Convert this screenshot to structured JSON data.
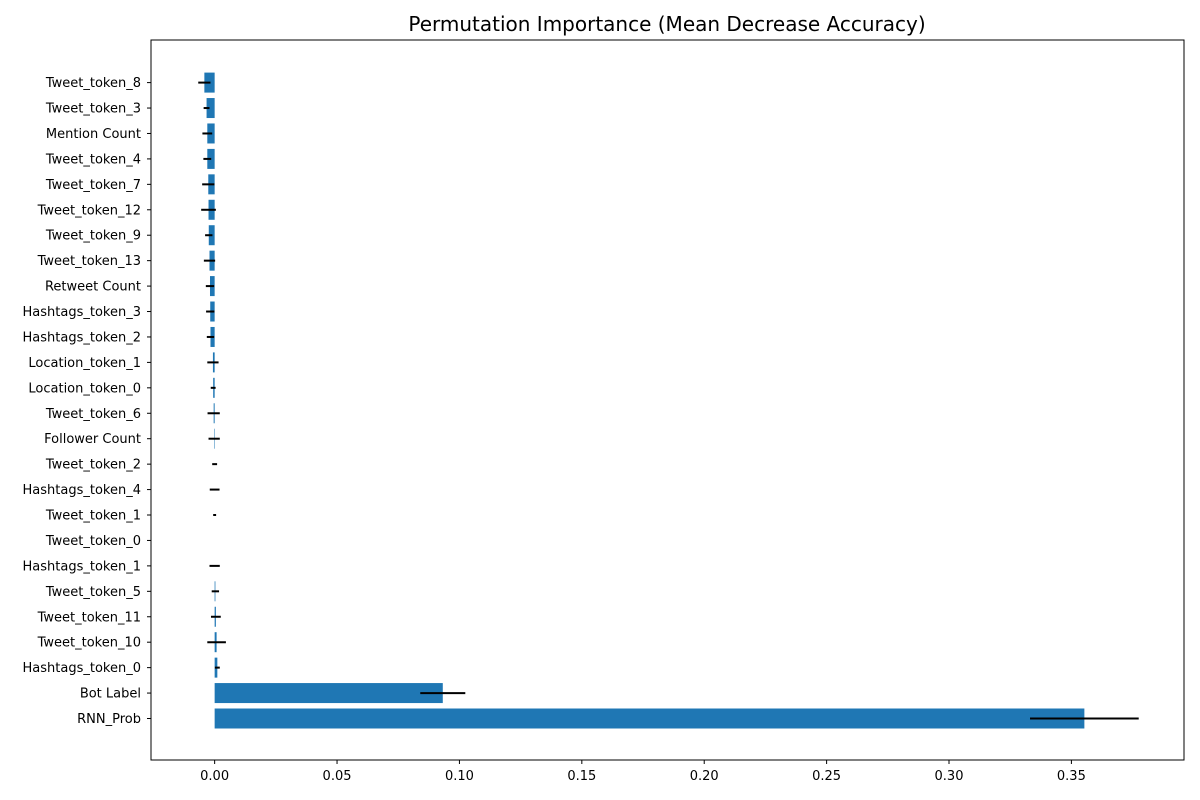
{
  "chart_data": {
    "type": "bar",
    "orientation": "horizontal",
    "title": "Permutation Importance (Mean Decrease Accuracy)",
    "xlabel": "",
    "ylabel": "",
    "xlim": [
      -0.026,
      0.396
    ],
    "xticks": [
      0.0,
      0.05,
      0.1,
      0.15,
      0.2,
      0.25,
      0.3,
      0.35
    ],
    "xtick_labels": [
      "0.00",
      "0.05",
      "0.10",
      "0.15",
      "0.20",
      "0.25",
      "0.30",
      "0.35"
    ],
    "grid": false,
    "bar_color": "#1f77b4",
    "error_color": "#000000",
    "categories": [
      "Tweet_token_8",
      "Tweet_token_3",
      "Mention Count",
      "Tweet_token_4",
      "Tweet_token_7",
      "Tweet_token_12",
      "Tweet_token_9",
      "Tweet_token_13",
      "Retweet Count",
      "Hashtags_token_3",
      "Hashtags_token_2",
      "Location_token_1",
      "Location_token_0",
      "Tweet_token_6",
      "Follower Count",
      "Tweet_token_2",
      "Hashtags_token_4",
      "Tweet_token_1",
      "Tweet_token_0",
      "Hashtags_token_1",
      "Tweet_token_5",
      "Tweet_token_11",
      "Tweet_token_10",
      "Hashtags_token_0",
      "Bot Label",
      "RNN_Prob"
    ],
    "values": [
      -0.0042,
      -0.0033,
      -0.003,
      -0.003,
      -0.0026,
      -0.0025,
      -0.0024,
      -0.0021,
      -0.0019,
      -0.0018,
      -0.0017,
      -0.0007,
      -0.0006,
      -0.0004,
      -0.0002,
      0.0,
      0.0,
      0.0,
      0.0,
      0.0,
      0.0003,
      0.0005,
      0.0008,
      0.0011,
      0.0932,
      0.3553
    ],
    "errors": [
      0.0025,
      0.0012,
      0.002,
      0.0016,
      0.0025,
      0.003,
      0.0015,
      0.0023,
      0.0017,
      0.0017,
      0.0015,
      0.0023,
      0.001,
      0.0025,
      0.0023,
      0.001,
      0.002,
      0.0006,
      0.0,
      0.0021,
      0.0015,
      0.002,
      0.0038,
      0.001,
      0.0092,
      0.0222
    ]
  }
}
